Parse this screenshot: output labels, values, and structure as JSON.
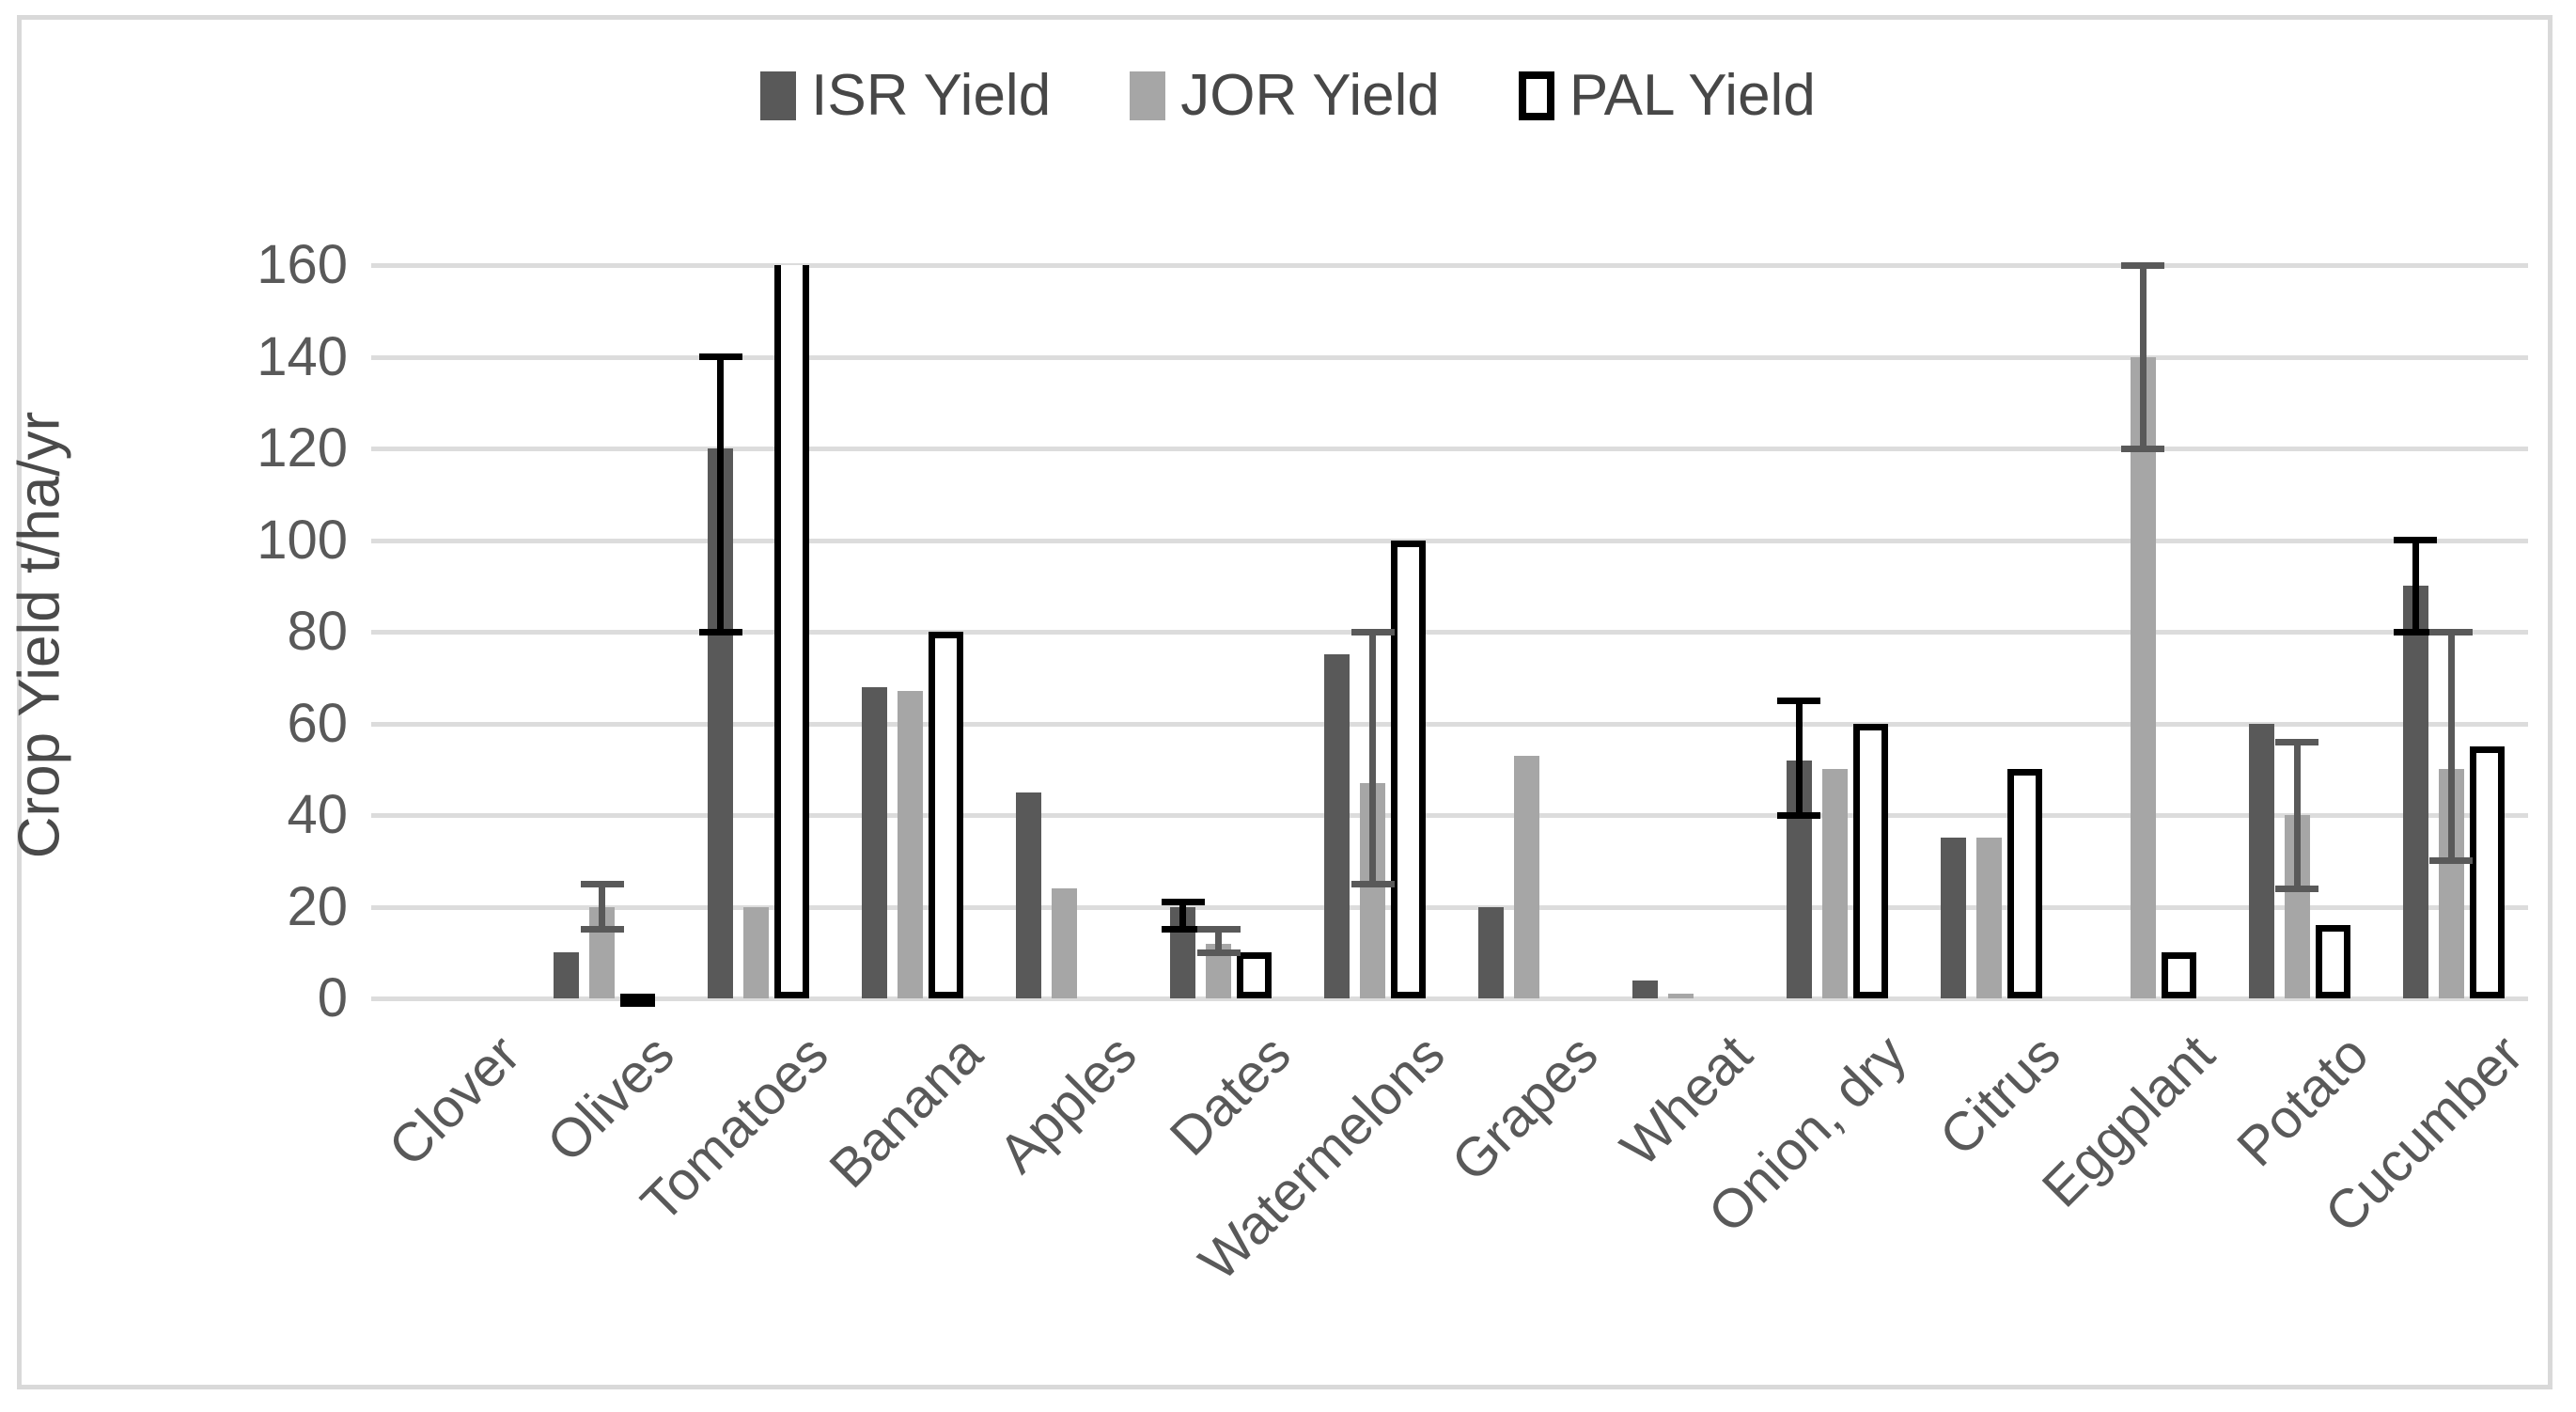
{
  "chart_data": {
    "type": "bar",
    "title": "",
    "ylabel": "Crop Yield t/ha/yr",
    "xlabel": "",
    "ylim": [
      0,
      160
    ],
    "yticks": [
      0,
      20,
      40,
      60,
      80,
      100,
      120,
      140,
      160
    ],
    "grid": true,
    "legend_position": "top-center",
    "categories": [
      "Clover",
      "Olives",
      "Tomatoes",
      "Banana",
      "Apples",
      "Dates",
      "Watermelons",
      "Grapes",
      "Wheat",
      "Onion, dry",
      "Citrus",
      "Eggplant",
      "Potato",
      "Cucumber"
    ],
    "series": [
      {
        "name": "ISR Yield",
        "color": "#595959",
        "error_color": "#000000",
        "points": [
          {
            "v": 0
          },
          {
            "v": 10
          },
          {
            "v": 120,
            "lo": 80,
            "hi": 140
          },
          {
            "v": 68
          },
          {
            "v": 45
          },
          {
            "v": 20,
            "lo": 15,
            "hi": 21
          },
          {
            "v": 75
          },
          {
            "v": 20
          },
          {
            "v": 4
          },
          {
            "v": 52,
            "lo": 40,
            "hi": 65
          },
          {
            "v": 35
          },
          {
            "v": 0
          },
          {
            "v": 60
          },
          {
            "v": 90,
            "lo": 80,
            "hi": 100
          }
        ]
      },
      {
        "name": "JOR Yield",
        "color": "#a6a6a6",
        "error_color": "#595959",
        "points": [
          {
            "v": 0
          },
          {
            "v": 20,
            "lo": 15,
            "hi": 25
          },
          {
            "v": 20
          },
          {
            "v": 67
          },
          {
            "v": 24
          },
          {
            "v": 12,
            "lo": 10,
            "hi": 15
          },
          {
            "v": 47,
            "lo": 25,
            "hi": 80
          },
          {
            "v": 53
          },
          {
            "v": 1
          },
          {
            "v": 50
          },
          {
            "v": 35
          },
          {
            "v": 140,
            "lo": 120,
            "hi": 160
          },
          {
            "v": 40,
            "lo": 24,
            "hi": 56
          },
          {
            "v": 50,
            "lo": 30,
            "hi": 80
          }
        ]
      },
      {
        "name": "PAL Yield",
        "color": "#ffffff",
        "border_color": "#000000",
        "points": [
          {
            "v": 0
          },
          {
            "v": 1
          },
          {
            "v": 160,
            "clipped": true
          },
          {
            "v": 80
          },
          {
            "v": 0
          },
          {
            "v": 10
          },
          {
            "v": 100
          },
          {
            "v": 0
          },
          {
            "v": 0
          },
          {
            "v": 60
          },
          {
            "v": 50
          },
          {
            "v": 10
          },
          {
            "v": 16
          },
          {
            "v": 55
          }
        ]
      }
    ]
  },
  "style": {
    "gridline_color": "#dcdcdc",
    "tick_text_color": "#595959",
    "frame_border_color": "#d9d9d9",
    "background": "#ffffff"
  }
}
